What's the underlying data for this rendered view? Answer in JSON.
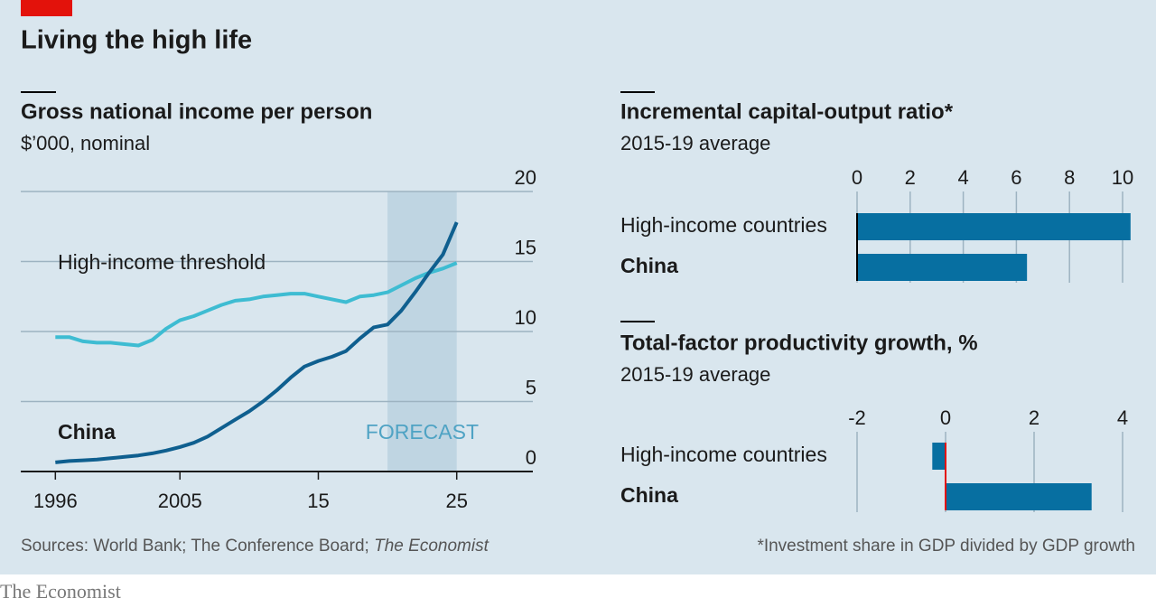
{
  "title": "Living the high life",
  "source": {
    "text": "Sources: World Bank; The Conference Board; ",
    "italic": "The Economist"
  },
  "footnote": "*Investment share in GDP divided by GDP growth",
  "brand": "The Economist",
  "chart_data": [
    {
      "type": "line",
      "title": "Gross national income per person",
      "subtitle": "$’000, nominal",
      "x": [
        1996,
        1997,
        1998,
        1999,
        2000,
        2001,
        2002,
        2003,
        2004,
        2005,
        2006,
        2007,
        2008,
        2009,
        2010,
        2011,
        2012,
        2013,
        2014,
        2015,
        2016,
        2017,
        2018,
        2019,
        2020,
        2021,
        2022,
        2023,
        2024,
        2025
      ],
      "series": [
        {
          "name": "High-income threshold",
          "color": "#3ebcd2",
          "values": [
            9.6,
            9.6,
            9.3,
            9.2,
            9.2,
            9.1,
            9.0,
            9.4,
            10.2,
            10.8,
            11.1,
            11.5,
            11.9,
            12.2,
            12.3,
            12.5,
            12.6,
            12.7,
            12.7,
            12.5,
            12.3,
            12.1,
            12.5,
            12.6,
            12.8,
            13.3,
            13.8,
            14.2,
            14.5,
            14.9
          ]
        },
        {
          "name": "China",
          "color": "#0f5f8f",
          "values": [
            0.65,
            0.75,
            0.8,
            0.85,
            0.95,
            1.05,
            1.15,
            1.3,
            1.5,
            1.75,
            2.05,
            2.5,
            3.1,
            3.7,
            4.3,
            5.0,
            5.8,
            6.7,
            7.5,
            7.9,
            8.2,
            8.6,
            9.5,
            10.3,
            10.5,
            11.5,
            12.8,
            14.2,
            15.5,
            17.8
          ]
        }
      ],
      "forecast": {
        "label": "FORECAST",
        "start": 2020,
        "end": 2025
      },
      "xlim": [
        1993.5,
        2030.5
      ],
      "xticks": [
        1996,
        2005,
        {
          "value": 2015,
          "label": "15"
        },
        {
          "value": 2025,
          "label": "25"
        }
      ],
      "ylim": [
        0,
        20
      ],
      "yticks": [
        0,
        5,
        10,
        15,
        20
      ],
      "grid": true
    },
    {
      "type": "bar",
      "orientation": "horizontal",
      "title": "Incremental capital-output ratio*",
      "subtitle": "2015-19 average",
      "categories": [
        "High-income countries",
        "China"
      ],
      "values": [
        10.3,
        6.4
      ],
      "color": "#076fa1",
      "xlim": [
        0,
        10
      ],
      "xticks": [
        0,
        2,
        4,
        6,
        8,
        10
      ],
      "grid": true,
      "baseline_color": "#000000"
    },
    {
      "type": "bar",
      "orientation": "horizontal",
      "title": "Total-factor productivity growth, %",
      "subtitle": "2015-19 average",
      "categories": [
        "High-income countries",
        "China"
      ],
      "values": [
        -0.3,
        3.3
      ],
      "color": "#076fa1",
      "xlim": [
        -2,
        4
      ],
      "xticks": [
        -2,
        0,
        2,
        4
      ],
      "grid": true,
      "baseline_color": "#e3120b"
    }
  ]
}
